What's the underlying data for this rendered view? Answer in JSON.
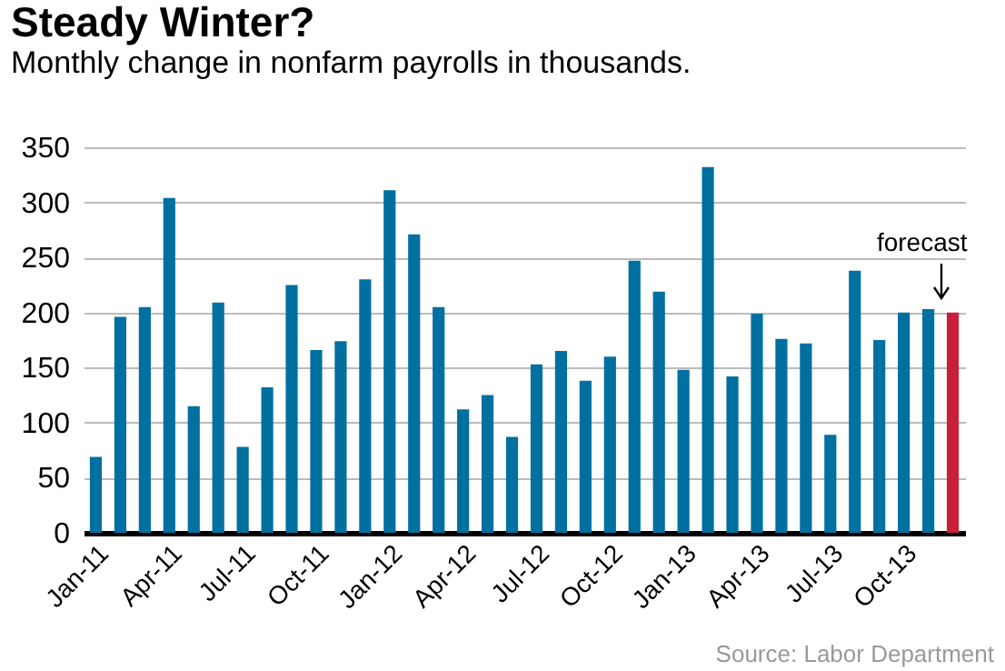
{
  "chart_data": {
    "type": "bar",
    "title": "Steady Winter?",
    "subtitle": "Monthly change in nonfarm payrolls in thousands.",
    "categories": [
      "Jan-11",
      null,
      null,
      "Apr-11",
      null,
      null,
      "Jul-11",
      null,
      null,
      "Oct-11",
      null,
      null,
      "Jan-12",
      null,
      null,
      "Apr-12",
      null,
      null,
      "Jul-12",
      null,
      null,
      "Oct-12",
      null,
      null,
      "Jan-13",
      null,
      null,
      "Apr-13",
      null,
      null,
      "Jul-13",
      null,
      null,
      "Oct-13",
      null,
      null
    ],
    "values": [
      69,
      196,
      205,
      304,
      115,
      209,
      78,
      132,
      225,
      166,
      174,
      230,
      311,
      271,
      205,
      112,
      125,
      87,
      153,
      165,
      138,
      160,
      247,
      219,
      148,
      332,
      142,
      199,
      176,
      172,
      89,
      238,
      175,
      200,
      203,
      200
    ],
    "colors": [
      "#0070a0",
      "#0070a0",
      "#0070a0",
      "#0070a0",
      "#0070a0",
      "#0070a0",
      "#0070a0",
      "#0070a0",
      "#0070a0",
      "#0070a0",
      "#0070a0",
      "#0070a0",
      "#0070a0",
      "#0070a0",
      "#0070a0",
      "#0070a0",
      "#0070a0",
      "#0070a0",
      "#0070a0",
      "#0070a0",
      "#0070a0",
      "#0070a0",
      "#0070a0",
      "#0070a0",
      "#0070a0",
      "#0070a0",
      "#0070a0",
      "#0070a0",
      "#0070a0",
      "#0070a0",
      "#0070a0",
      "#0070a0",
      "#0070a0",
      "#0070a0",
      "#0070a0",
      "#c8203a"
    ],
    "ylim": [
      0,
      350
    ],
    "yticks": [
      0,
      50,
      100,
      150,
      200,
      250,
      300,
      350
    ],
    "grid": "y",
    "annotations": [
      "forecast",
      "Source: Labor Department"
    ]
  }
}
